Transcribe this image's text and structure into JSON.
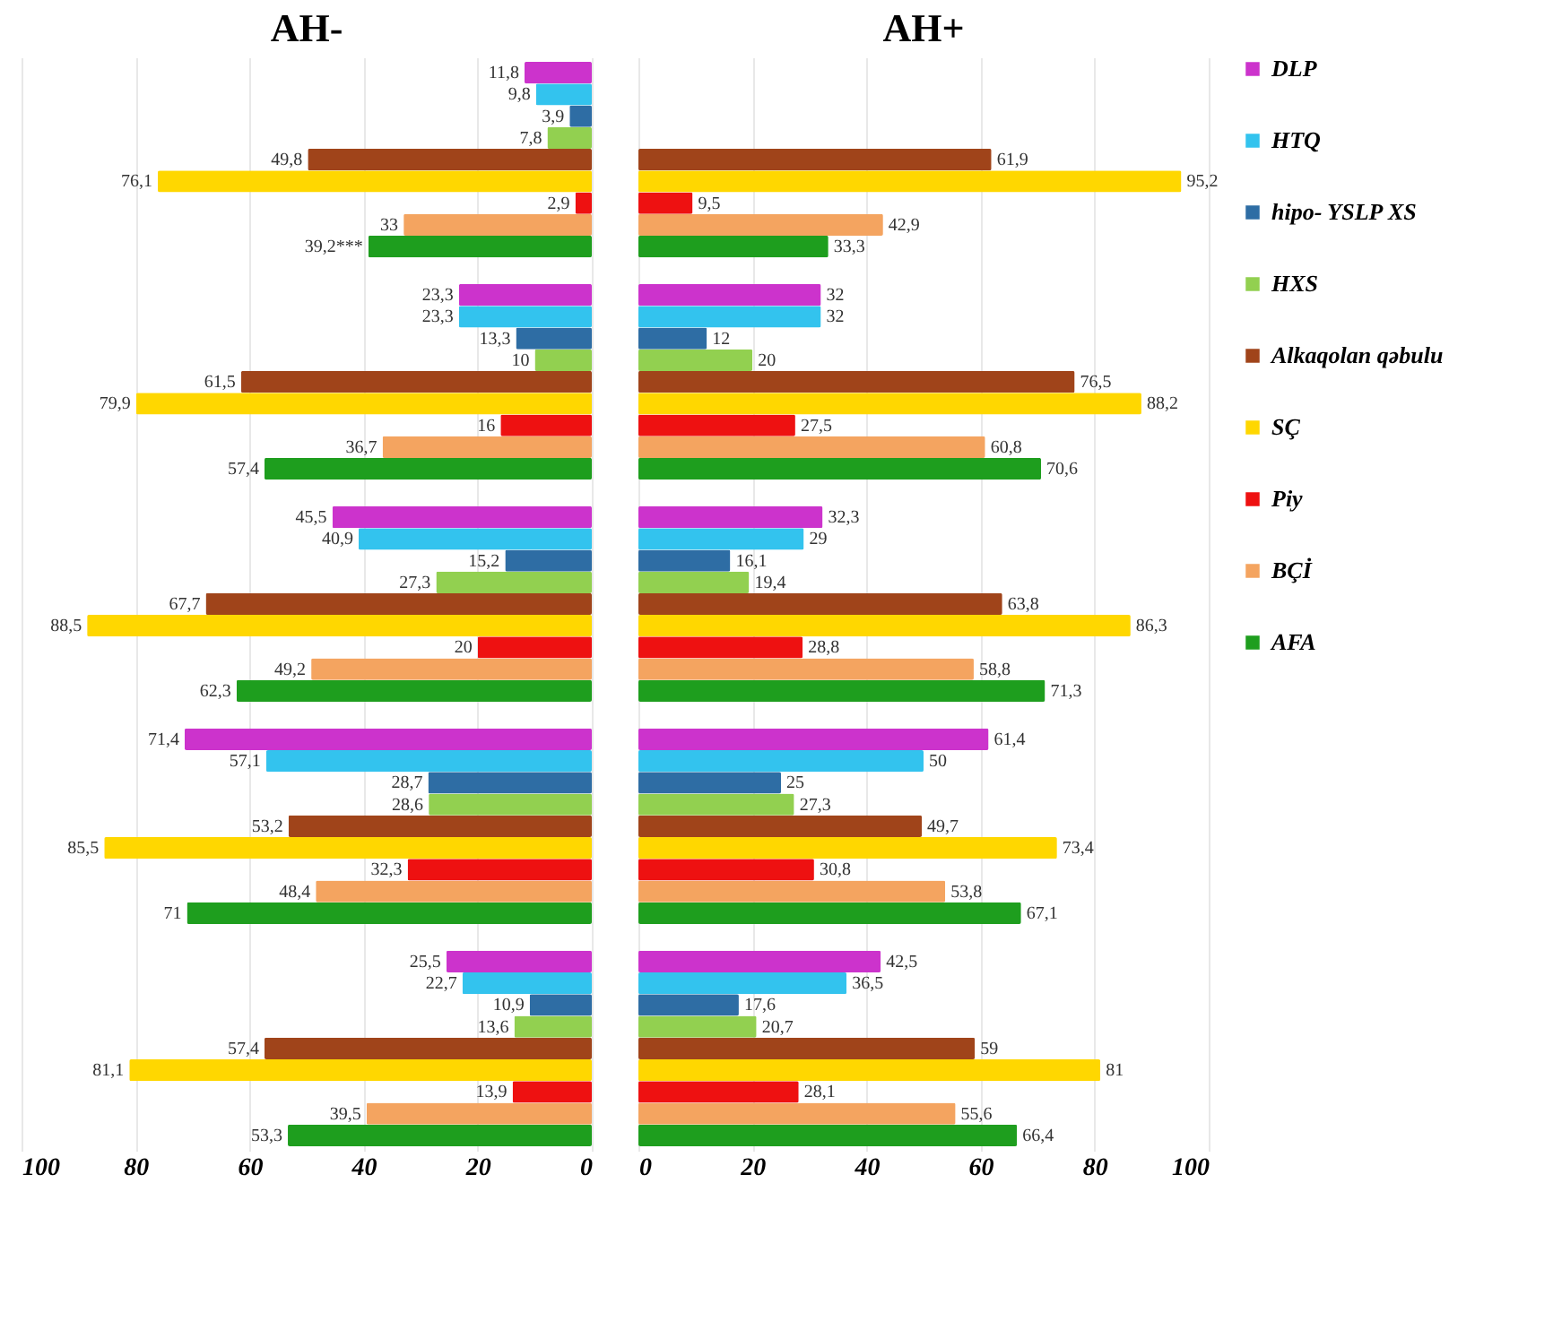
{
  "chart_data": [
    {
      "type": "bar",
      "orientation": "horizontal",
      "title": "AH-",
      "categories": [
        null,
        null,
        null,
        null,
        null
      ],
      "xlim": [
        100,
        0
      ],
      "xticks": [
        100,
        80,
        60,
        40,
        20,
        0
      ],
      "grid": "x",
      "tick_labels": "x",
      "legend": "right",
      "series": [
        {
          "name": "DLP",
          "color": "#cc33cc",
          "values": [
            11.8,
            23.3,
            45.5,
            71.4,
            25.5
          ],
          "value_labels": [
            "11,8",
            "23,3",
            "45,5",
            "71,4",
            "25,5"
          ]
        },
        {
          "name": "HTQ",
          "color": "#33c3ee",
          "values": [
            9.8,
            23.3,
            40.9,
            57.1,
            22.7
          ],
          "value_labels": [
            "9,8",
            "23,3",
            "40,9",
            "57,1",
            "22,7"
          ]
        },
        {
          "name": "hipo- YSLP XS",
          "color": "#2e6da4",
          "values": [
            3.9,
            13.3,
            15.2,
            28.7,
            10.9
          ],
          "value_labels": [
            "3,9",
            "13,3",
            "15,2",
            "28,7",
            "10,9"
          ]
        },
        {
          "name": "HXS",
          "color": "#92d050",
          "values": [
            7.8,
            10,
            27.3,
            28.6,
            13.6
          ],
          "value_labels": [
            "7,8",
            "10",
            "27,3",
            "28,6",
            "13,6"
          ]
        },
        {
          "name": "Alkaqolan qəbulu",
          "color": "#a0441a",
          "values": [
            49.8,
            61.5,
            67.7,
            53.2,
            57.4
          ],
          "value_labels": [
            "49,8",
            "61,5",
            "67,7",
            "53,2",
            "57,4"
          ]
        },
        {
          "name": "SÇ",
          "color": "#ffd700",
          "values": [
            76.1,
            79.9,
            88.5,
            85.5,
            81.1
          ],
          "value_labels": [
            "76,1",
            "79,9",
            "88,5",
            "85,5",
            "81,1"
          ]
        },
        {
          "name": "Piy",
          "color": "#ee1111",
          "values": [
            2.9,
            16,
            20,
            32.3,
            13.9
          ],
          "value_labels": [
            "2,9",
            "16",
            "20",
            "32,3",
            "13,9"
          ]
        },
        {
          "name": "BÇİ",
          "color": "#f4a460",
          "values": [
            33,
            36.7,
            49.2,
            48.4,
            39.5
          ],
          "value_labels": [
            "33",
            "36,7",
            "49,2",
            "48,4",
            "39,5"
          ]
        },
        {
          "name": "AFA",
          "color": "#1e9e1e",
          "values": [
            39.2,
            57.4,
            62.3,
            71,
            53.3
          ],
          "value_labels": [
            "39,2***",
            "57,4",
            "62,3",
            "71",
            "53,3"
          ]
        }
      ]
    },
    {
      "type": "bar",
      "orientation": "horizontal",
      "title": "AH+",
      "categories": [
        null,
        null,
        null,
        null,
        null
      ],
      "xlim": [
        0,
        100
      ],
      "xticks": [
        0,
        20,
        40,
        60,
        80,
        100
      ],
      "grid": "x",
      "tick_labels": "x",
      "legend": "right",
      "series": [
        {
          "name": "DLP",
          "color": "#cc33cc",
          "values": [
            null,
            32,
            32.3,
            61.4,
            42.5
          ],
          "value_labels": [
            null,
            "32",
            "32,3",
            "61,4",
            "42,5"
          ]
        },
        {
          "name": "HTQ",
          "color": "#33c3ee",
          "values": [
            null,
            32,
            29,
            50,
            36.5
          ],
          "value_labels": [
            null,
            "32",
            "29",
            "50",
            "36,5"
          ]
        },
        {
          "name": "hipo- YSLP XS",
          "color": "#2e6da4",
          "values": [
            null,
            12,
            16.1,
            25,
            17.6
          ],
          "value_labels": [
            null,
            "12",
            "16,1",
            "25",
            "17,6"
          ]
        },
        {
          "name": "HXS",
          "color": "#92d050",
          "values": [
            null,
            20,
            19.4,
            27.3,
            20.7
          ],
          "value_labels": [
            null,
            "20",
            "19,4",
            "27,3",
            "20,7"
          ]
        },
        {
          "name": "Alkaqolan qəbulu",
          "color": "#a0441a",
          "values": [
            61.9,
            76.5,
            63.8,
            49.7,
            59
          ],
          "value_labels": [
            "61,9",
            "76,5",
            "63,8",
            "49,7",
            "59"
          ]
        },
        {
          "name": "SÇ",
          "color": "#ffd700",
          "values": [
            95.2,
            88.2,
            86.3,
            73.4,
            81
          ],
          "value_labels": [
            "95,2",
            "88,2",
            "86,3",
            "73,4",
            "81"
          ]
        },
        {
          "name": "Piy",
          "color": "#ee1111",
          "values": [
            9.5,
            27.5,
            28.8,
            30.8,
            28.1
          ],
          "value_labels": [
            "9,5",
            "27,5",
            "28,8",
            "30,8",
            "28,1"
          ]
        },
        {
          "name": "BÇİ",
          "color": "#f4a460",
          "values": [
            42.9,
            60.8,
            58.8,
            53.8,
            55.6
          ],
          "value_labels": [
            "42,9",
            "60,8",
            "58,8",
            "53,8",
            "55,6"
          ]
        },
        {
          "name": "AFA",
          "color": "#1e9e1e",
          "values": [
            33.3,
            70.6,
            71.3,
            67.1,
            66.4
          ],
          "value_labels": [
            "33,3",
            "70,6",
            "71,3",
            "67,1",
            "66,4"
          ]
        }
      ]
    }
  ]
}
